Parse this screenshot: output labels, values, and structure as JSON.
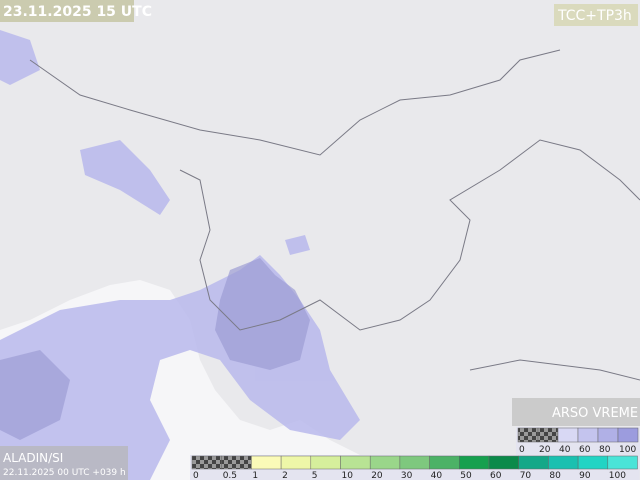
{
  "header": {
    "valid_time": "23.11.2025 15 UTC",
    "product": "TCC+TP3h"
  },
  "footer": {
    "model": "ALADIN/SI",
    "run": "22.11.2025 00 UTC +039 h",
    "brand": "ARSO VREME"
  },
  "cloud_legend": {
    "labels": [
      "0",
      "20",
      "40",
      "60",
      "80",
      "100"
    ],
    "colors": [
      "checker",
      "checker",
      "#d8d8f4",
      "#c4c4ee",
      "#b0b0e6",
      "#9c9cde"
    ]
  },
  "precip_legend": {
    "labels": [
      "0",
      "0.5",
      "1",
      "2",
      "5",
      "10",
      "20",
      "30",
      "40",
      "50",
      "60",
      "70",
      "80",
      "90",
      "100"
    ],
    "colors": [
      "checker",
      "checker",
      "#fbfbb8",
      "#eef7a8",
      "#d6ef9c",
      "#b8e394",
      "#9ad68a",
      "#7ec87e",
      "#4cb266",
      "#16a04e",
      "#0b8a4a",
      "#14a888",
      "#1ac0b0",
      "#22d4c4",
      "#4ae4d8"
    ]
  }
}
